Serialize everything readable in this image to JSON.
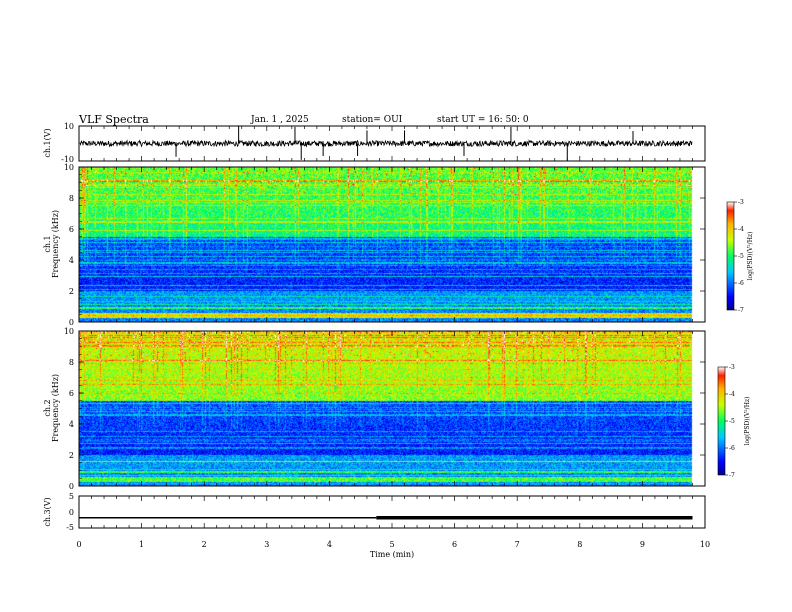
{
  "header": {
    "title": "VLF Spectra",
    "date": "Jan. 1 , 2025",
    "station": "station= OUI",
    "start": "start  UT =  16: 50: 0"
  },
  "chart_data": [
    {
      "type": "line",
      "name": "ch1-waveform",
      "ylabel": "ch.1(V)",
      "ylim": [
        -10,
        10
      ],
      "yticks": [
        "10",
        "-10"
      ],
      "baseline": 0,
      "x_range": [
        0,
        9.8
      ]
    },
    {
      "type": "heatmap",
      "name": "ch1-spectrogram",
      "ylabel_line1": "ch.1",
      "ylabel_line2": "Frequency (kHz)",
      "ylim": [
        0,
        10
      ],
      "yticks": [
        "0",
        "2",
        "4",
        "6",
        "8",
        "10"
      ],
      "colorbar": {
        "label": "log(PSD)(V²/Hz)",
        "min": -7,
        "max": -3,
        "ticks": [
          "-3",
          "-4",
          "-5",
          "-6",
          "-7"
        ]
      }
    },
    {
      "type": "heatmap",
      "name": "ch2-spectrogram",
      "ylabel_line1": "ch.2",
      "ylabel_line2": "Frequency (kHz)",
      "ylim": [
        0,
        10
      ],
      "yticks": [
        "0",
        "2",
        "4",
        "6",
        "8",
        "10"
      ],
      "colorbar": {
        "label": "log(PSD)(V²/Hz)",
        "min": -7,
        "max": -3,
        "ticks": [
          "-3",
          "-4",
          "-5",
          "-6",
          "-7"
        ]
      }
    },
    {
      "type": "line",
      "name": "ch3-level",
      "ylabel": "ch.3(V)",
      "ylim": [
        -5,
        5
      ],
      "yticks": [
        "5",
        "0",
        "-5"
      ],
      "x": [
        0,
        4.75,
        4.75,
        9.8
      ],
      "y": [
        -1.8,
        -1.8,
        -1.8,
        -1.8
      ],
      "step_time": 4.75
    }
  ],
  "xaxis": {
    "label": "Time (min)",
    "ticks": [
      "0",
      "1",
      "2",
      "3",
      "4",
      "5",
      "6",
      "7",
      "8",
      "9",
      "10"
    ],
    "range": [
      0,
      10
    ]
  }
}
